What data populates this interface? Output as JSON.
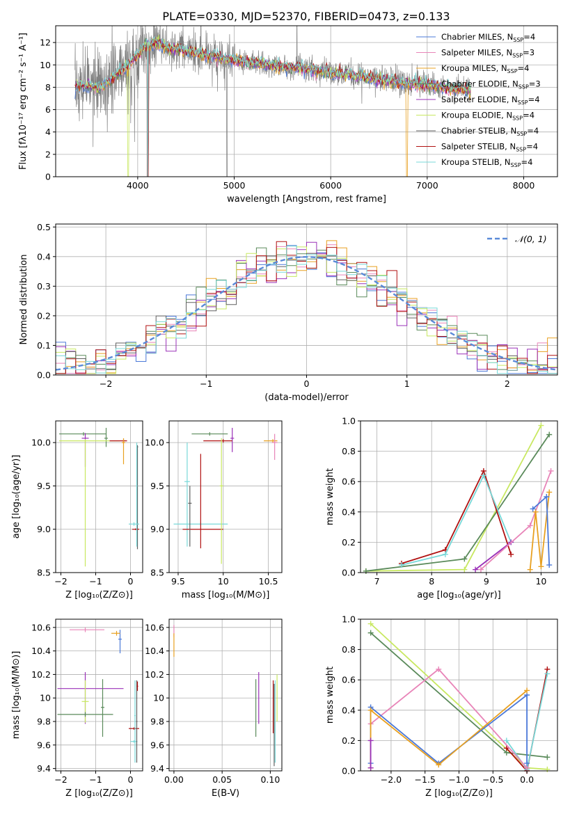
{
  "figure": {
    "title": "PLATE=0330, MJD=52370, FIBERID=0473, z=0.133"
  },
  "colors": {
    "Chabrier MILES": "#4a78d8",
    "Salpeter MILES": "#e884b8",
    "Kroupa MILES": "#e8a020",
    "Chabrier ELODIE": "#5a8a5a",
    "Salpeter ELODIE": "#9a30b8",
    "Kroupa ELODIE": "#c8e860",
    "Chabrier STELIB": "#606060",
    "Salpeter STELIB": "#b01010",
    "Kroupa STELIB": "#78d8d8",
    "normal": "#5a8ad8",
    "observed": "#808080"
  },
  "chart_data": [
    {
      "id": "spectrum",
      "type": "line",
      "xlabel": "wavelength [Angstrom, rest frame]",
      "ylabel": "Flux [fλ10⁻¹⁷ erg cm⁻² s⁻¹ A⁻¹]",
      "xlim": [
        3150,
        8350
      ],
      "ylim": [
        0,
        13.5
      ],
      "xticks": [
        4000,
        5000,
        6000,
        7000,
        8000
      ],
      "yticks": [
        0,
        2,
        4,
        6,
        8,
        10,
        12
      ],
      "legend_position": "top-right",
      "legend": [
        "Chabrier MILES, N_SSP=4",
        "Salpeter MILES, N_SSP=3",
        "Kroupa MILES, N_SSP=4",
        "Chabrier ELODIE, N_SSP=3",
        "Salpeter ELODIE, N_SSP=4",
        "Kroupa ELODIE, N_SSP=4",
        "Chabrier STELIB, N_SSP=4",
        "Salpeter STELIB, N_SSP=4",
        "Kroupa STELIB, N_SSP=4"
      ],
      "continuum": {
        "x": [
          3350,
          3400,
          3500,
          3600,
          3700,
          3800,
          3900,
          4000,
          4100,
          4200,
          4300,
          4400,
          4500,
          4600,
          4700,
          4800,
          4900,
          5000,
          5200,
          5400,
          5600,
          5800,
          6000,
          6200,
          6400,
          6600,
          6800,
          7000,
          7200,
          7400
        ],
        "y": [
          7.8,
          8.2,
          8.1,
          8.0,
          8.5,
          9.3,
          10.0,
          11.0,
          11.8,
          12.0,
          11.6,
          11.5,
          11.3,
          11.1,
          10.9,
          10.8,
          10.6,
          10.4,
          10.2,
          10.0,
          9.8,
          9.6,
          9.3,
          9.1,
          8.9,
          8.6,
          8.4,
          8.2,
          8.0,
          7.8
        ]
      },
      "observed_x_range": [
        3350,
        7450
      ],
      "model_x_range": [
        3350,
        7450
      ],
      "model_series": [
        "Chabrier MILES",
        "Salpeter MILES",
        "Kroupa MILES",
        "Chabrier ELODIE",
        "Salpeter ELODIE",
        "Kroupa ELODIE",
        "Salpeter STELIB",
        "Kroupa STELIB"
      ]
    },
    {
      "id": "residuals",
      "type": "step",
      "xlabel": "(data-model)/error",
      "ylabel": "Normed distribution",
      "xlim": [
        -2.5,
        2.5
      ],
      "ylim": [
        0,
        0.51
      ],
      "xticks": [
        -2,
        -1,
        0,
        1,
        2
      ],
      "yticks": [
        0.0,
        0.1,
        0.2,
        0.3,
        0.4,
        0.5
      ],
      "legend_position": "top-right",
      "legend": [
        "𝒩(0, 1)"
      ],
      "bins": 50,
      "series": [
        "Chabrier MILES",
        "Salpeter MILES",
        "Kroupa MILES",
        "Chabrier ELODIE",
        "Salpeter ELODIE",
        "Kroupa ELODIE",
        "Chabrier STELIB",
        "Salpeter STELIB",
        "Kroupa STELIB"
      ]
    },
    {
      "id": "age_Z",
      "type": "errorbar",
      "xlabel": "Z [log₁₀(Z/Z⊙)]",
      "ylabel": "age  [log₁₀(age/yr)]",
      "xlim": [
        -2.15,
        0.35
      ],
      "ylim": [
        8.5,
        10.25
      ],
      "xticks": [
        -2,
        -1,
        0
      ],
      "yticks": [
        8.5,
        9.0,
        9.5,
        10.0
      ],
      "points": [
        {
          "s": "Chabrier ELODIE",
          "x": -1.35,
          "xe": [
            0.7,
            0.65
          ],
          "y": 10.1,
          "ye": [
            0.02,
            0.02
          ]
        },
        {
          "s": "Salpeter ELODIE",
          "x": -1.3,
          "xe": [
            0.1,
            0.1
          ],
          "y": 10.05,
          "ye": [
            0.33,
            0.06
          ]
        },
        {
          "s": "Chabrier ELODIE",
          "x": -0.7,
          "xe": [
            0.05,
            0.05
          ],
          "y": 10.05,
          "ye": [
            0.1,
            0.12
          ]
        },
        {
          "s": "Kroupa ELODIE",
          "x": -1.3,
          "xe": [
            0.75,
            1.0
          ],
          "y": 10.02,
          "ye": [
            1.45,
            0.02
          ]
        },
        {
          "s": "Salpeter STELIB",
          "x": -0.2,
          "xe": [
            0.4,
            0.1
          ],
          "y": 10.02,
          "ye": [
            0.02,
            0.02
          ]
        },
        {
          "s": "Kroupa MILES",
          "x": -0.2,
          "xe": [
            0.05,
            0.05
          ],
          "y": 10.0,
          "ye": [
            0.25,
            0.05
          ]
        },
        {
          "s": "Chabrier STELIB",
          "x": 0.2,
          "xe": [
            0.02,
            0.02
          ],
          "y": 9.95,
          "ye": [
            1.18,
            0.02
          ]
        },
        {
          "s": "Kroupa STELIB",
          "x": 0.1,
          "xe": [
            0.15,
            0.15
          ],
          "y": 9.06,
          "ye": [
            0.02,
            0.02
          ]
        },
        {
          "s": "Salpeter STELIB",
          "x": 0.15,
          "xe": [
            0.1,
            0.1
          ],
          "y": 9.0,
          "ye": [
            0.01,
            0.01
          ]
        },
        {
          "s": "Kroupa STELIB",
          "x": 0.18,
          "xe": [
            0.02,
            0.02
          ],
          "y": 9.5,
          "ye": [
            0.7,
            0.5
          ]
        }
      ]
    },
    {
      "id": "age_mass",
      "type": "errorbar",
      "xlabel": "mass [log₁₀(M/M⊙)]",
      "xlim": [
        9.4,
        10.65
      ],
      "ylim": [
        8.5,
        10.25
      ],
      "xticks": [
        9.5,
        10.0,
        10.5
      ],
      "yticks": [
        8.5,
        9.0,
        9.5,
        10.0
      ],
      "points": [
        {
          "s": "Chabrier ELODIE",
          "x": 9.85,
          "xe": [
            0.2,
            0.2
          ],
          "y": 10.1,
          "ye": [
            0.02,
            0.02
          ]
        },
        {
          "s": "Salpeter ELODIE",
          "x": 10.1,
          "xe": [
            0.02,
            0.02
          ],
          "y": 10.05,
          "ye": [
            0.16,
            0.12
          ]
        },
        {
          "s": "Kroupa MILES",
          "x": 10.55,
          "xe": [
            0.1,
            0.05
          ],
          "y": 10.02,
          "ye": [
            0.02,
            0.02
          ]
        },
        {
          "s": "Salpeter MILES",
          "x": 10.57,
          "xe": [
            0.03,
            0.03
          ],
          "y": 10.0,
          "ye": [
            0.2,
            0.1
          ]
        },
        {
          "s": "Salpeter STELIB",
          "x": 10.0,
          "xe": [
            0.22,
            0.1
          ],
          "y": 10.02,
          "ye": [
            0.02,
            0.02
          ]
        },
        {
          "s": "Kroupa STELIB",
          "x": 9.6,
          "xe": [
            0.03,
            0.03
          ],
          "y": 9.55,
          "ye": [
            0.75,
            0.45
          ]
        },
        {
          "s": "Kroupa STELIB",
          "x": 9.75,
          "xe": [
            0.3,
            0.3
          ],
          "y": 9.06,
          "ye": [
            0.02,
            0.02
          ]
        },
        {
          "s": "Salpeter STELIB",
          "x": 9.75,
          "xe": [
            0.2,
            0.25
          ],
          "y": 9.0,
          "ye": [
            0.22,
            0.87
          ]
        },
        {
          "s": "Kroupa ELODIE",
          "x": 9.98,
          "xe": [
            0.02,
            0.02
          ],
          "y": 9.5,
          "ye": [
            0.9,
            0.55
          ]
        },
        {
          "s": "Chabrier STELIB",
          "x": 9.63,
          "xe": [
            0.02,
            0.02
          ],
          "y": 9.3,
          "ye": [
            0.5,
            0.2
          ]
        }
      ]
    },
    {
      "id": "weight_age",
      "type": "line",
      "xlabel": "age  [log₁₀(age/yr)]",
      "ylabel": "mass weight",
      "xlim": [
        6.7,
        10.3
      ],
      "ylim": [
        0,
        1.0
      ],
      "xticks": [
        7,
        8,
        9,
        10
      ],
      "yticks": [
        0.0,
        0.2,
        0.4,
        0.6,
        0.8,
        1.0
      ],
      "series": [
        {
          "name": "Kroupa ELODIE",
          "x": [
            6.8,
            8.6,
            10.0
          ],
          "y": [
            0.01,
            0.02,
            0.97
          ]
        },
        {
          "name": "Chabrier ELODIE",
          "x": [
            6.8,
            8.6,
            10.15
          ],
          "y": [
            0.01,
            0.09,
            0.91
          ]
        },
        {
          "name": "Salpeter STELIB",
          "x": [
            7.45,
            8.25,
            8.95,
            9.45
          ],
          "y": [
            0.06,
            0.15,
            0.67,
            0.12
          ]
        },
        {
          "name": "Kroupa STELIB",
          "x": [
            7.45,
            8.25,
            8.95,
            9.45
          ],
          "y": [
            0.05,
            0.12,
            0.64,
            0.2
          ]
        },
        {
          "name": "Salpeter ELODIE",
          "x": [
            8.8,
            9.45
          ],
          "y": [
            0.02,
            0.2
          ]
        },
        {
          "name": "Salpeter MILES",
          "x": [
            8.9,
            9.8,
            10.18
          ],
          "y": [
            0.02,
            0.31,
            0.67
          ]
        },
        {
          "name": "Kroupa MILES",
          "x": [
            9.8,
            9.9,
            10.0,
            10.15
          ],
          "y": [
            0.02,
            0.4,
            0.04,
            0.53
          ]
        },
        {
          "name": "Chabrier MILES",
          "x": [
            9.85,
            10.1,
            10.15
          ],
          "y": [
            0.42,
            0.5,
            0.05
          ]
        }
      ]
    },
    {
      "id": "mass_Z",
      "type": "errorbar",
      "xlabel": "Z [log₁₀(Z/Z⊙)]",
      "ylabel": "mass [log₁₀(M/M⊙)]",
      "xlim": [
        -2.15,
        0.35
      ],
      "ylim": [
        9.38,
        10.67
      ],
      "xticks": [
        -2,
        -1,
        0
      ],
      "yticks": [
        9.4,
        9.6,
        9.8,
        10.0,
        10.2,
        10.4,
        10.6
      ],
      "points": [
        {
          "s": "Salpeter MILES",
          "x": -1.3,
          "xe": [
            0.45,
            0.55
          ],
          "y": 10.58,
          "ye": [
            0.02,
            0.02
          ]
        },
        {
          "s": "Chabrier MILES",
          "x": -0.3,
          "xe": [
            0.05,
            0.05
          ],
          "y": 10.5,
          "ye": [
            0.12,
            0.08
          ]
        },
        {
          "s": "Kroupa MILES",
          "x": -0.4,
          "xe": [
            0.15,
            0.1
          ],
          "y": 10.55,
          "ye": [
            0.02,
            0.02
          ]
        },
        {
          "s": "Salpeter ELODIE",
          "x": -1.3,
          "xe": [
            0.8,
            1.1
          ],
          "y": 10.08,
          "ye": [
            0.3,
            0.14
          ]
        },
        {
          "s": "Chabrier ELODIE",
          "x": -0.8,
          "xe": [
            0.05,
            0.05
          ],
          "y": 9.92,
          "ye": [
            0.25,
            0.24
          ]
        },
        {
          "s": "Kroupa ELODIE",
          "x": -1.3,
          "xe": [
            0.1,
            0.1
          ],
          "y": 9.97,
          "ye": [
            0.18,
            0.18
          ]
        },
        {
          "s": "Chabrier ELODIE",
          "x": -1.3,
          "xe": [
            0.8,
            0.8
          ],
          "y": 9.86,
          "ye": [
            0.02,
            0.02
          ]
        },
        {
          "s": "Salpeter STELIB",
          "x": 0.1,
          "xe": [
            0.15,
            0.15
          ],
          "y": 9.74,
          "ye": [
            0.01,
            0.01
          ]
        },
        {
          "s": "Kroupa STELIB",
          "x": 0.1,
          "xe": [
            0.1,
            0.1
          ],
          "y": 9.63,
          "ye": [
            0.01,
            0.01
          ]
        },
        {
          "s": "Chabrier STELIB",
          "x": 0.18,
          "xe": [
            0.02,
            0.02
          ],
          "y": 9.8,
          "ye": [
            0.35,
            0.35
          ]
        },
        {
          "s": "Kroupa STELIB",
          "x": 0.13,
          "xe": [
            0.02,
            0.02
          ],
          "y": 9.85,
          "ye": [
            0.4,
            0.3
          ]
        },
        {
          "s": "Salpeter STELIB",
          "x": 0.2,
          "xe": [
            0.02,
            0.02
          ],
          "y": 10.1,
          "ye": [
            0.04,
            0.04
          ]
        }
      ]
    },
    {
      "id": "mass_ebv",
      "type": "errorbar",
      "xlabel": "E(B-V)",
      "xlim": [
        -0.005,
        0.112
      ],
      "ylim": [
        9.38,
        10.67
      ],
      "xticks": [
        0.0,
        0.05,
        0.1
      ],
      "xtick_labels": [
        "0.00",
        "0.05",
        "0.10"
      ],
      "yticks": [
        9.4,
        9.6,
        9.8,
        10.0,
        10.2,
        10.4,
        10.6
      ],
      "points": [
        {
          "s": "Salpeter MILES",
          "x": 0.0,
          "xe": [
            0.0,
            0.0
          ],
          "y": 10.57,
          "ye": [
            0.05,
            0.05
          ]
        },
        {
          "s": "Kroupa MILES",
          "x": 0.0,
          "xe": [
            0.0,
            0.0
          ],
          "y": 10.45,
          "ye": [
            0.1,
            0.1
          ]
        },
        {
          "s": "Chabrier ELODIE",
          "x": 0.085,
          "xe": [
            0.0,
            0.0
          ],
          "y": 9.92,
          "ye": [
            0.25,
            0.24
          ]
        },
        {
          "s": "Salpeter ELODIE",
          "x": 0.088,
          "xe": [
            0.0,
            0.0
          ],
          "y": 10.08,
          "ye": [
            0.3,
            0.14
          ]
        },
        {
          "s": "Salpeter STELIB",
          "x": 0.103,
          "xe": [
            0.0,
            0.0
          ],
          "y": 9.9,
          "ye": [
            0.2,
            0.25
          ]
        },
        {
          "s": "Chabrier STELIB",
          "x": 0.104,
          "xe": [
            0.0,
            0.0
          ],
          "y": 9.72,
          "ye": [
            0.3,
            0.4
          ]
        },
        {
          "s": "Kroupa STELIB",
          "x": 0.105,
          "xe": [
            0.0,
            0.0
          ],
          "y": 9.8,
          "ye": [
            0.35,
            0.35
          ]
        },
        {
          "s": "Kroupa ELODIE",
          "x": 0.107,
          "xe": [
            0.0,
            0.0
          ],
          "y": 10.0,
          "ye": [
            0.2,
            0.2
          ]
        }
      ]
    },
    {
      "id": "weight_Z",
      "type": "line",
      "xlabel": "Z [log₁₀(Z/Z⊙)]",
      "ylabel": "mass weight",
      "xlim": [
        -2.45,
        0.45
      ],
      "ylim": [
        0,
        1.0
      ],
      "xticks": [
        -2.0,
        -1.5,
        -1.0,
        -0.5,
        0.0
      ],
      "xtick_labels": [
        "−2.0",
        "−1.5",
        "−1.0",
        "−0.5",
        "0.0"
      ],
      "yticks": [
        0.0,
        0.2,
        0.4,
        0.6,
        0.8,
        1.0
      ],
      "series": [
        {
          "name": "Kroupa ELODIE",
          "x": [
            -2.3,
            0.0,
            0.3
          ],
          "y": [
            0.97,
            0.02,
            0.01
          ]
        },
        {
          "name": "Chabrier ELODIE",
          "x": [
            -2.3,
            -0.3,
            0.3
          ],
          "y": [
            0.91,
            0.12,
            0.09
          ]
        },
        {
          "name": "Salpeter STELIB",
          "x": [
            -0.3,
            0.0,
            0.3
          ],
          "y": [
            0.15,
            0.0,
            0.67
          ]
        },
        {
          "name": "Kroupa STELIB",
          "x": [
            -0.3,
            0.0,
            0.3
          ],
          "y": [
            0.2,
            0.01,
            0.64
          ]
        },
        {
          "name": "Salpeter MILES",
          "x": [
            -2.3,
            -1.3,
            0.0
          ],
          "y": [
            0.31,
            0.67,
            0.02
          ]
        },
        {
          "name": "Chabrier MILES",
          "x": [
            -2.3,
            -2.3,
            -1.3,
            0.0,
            0.0
          ],
          "y": [
            0.05,
            0.42,
            0.05,
            0.5,
            0.05
          ]
        },
        {
          "name": "Kroupa MILES",
          "x": [
            -2.3,
            -2.3,
            -1.3,
            0.0
          ],
          "y": [
            0.02,
            0.4,
            0.04,
            0.53
          ]
        },
        {
          "name": "Salpeter ELODIE",
          "x": [
            -2.3,
            -2.3
          ],
          "y": [
            0.02,
            0.2
          ]
        }
      ]
    }
  ]
}
